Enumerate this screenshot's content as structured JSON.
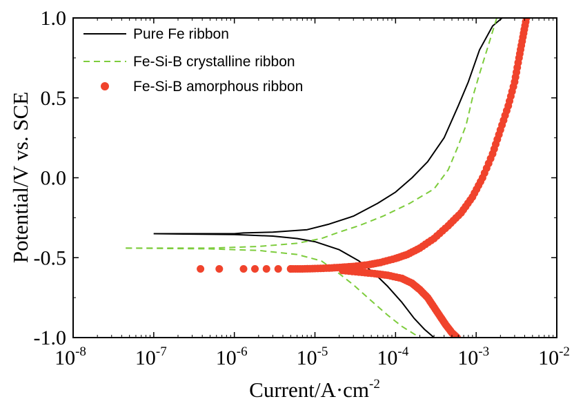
{
  "chart_data": {
    "type": "line",
    "title": "",
    "xlabel": "Current/A·cm",
    "xlabel_exp": "-2",
    "ylabel": "Potential/V vs. SCE",
    "xscale": "log",
    "xlim": [
      1e-08,
      0.01
    ],
    "ylim": [
      -1.0,
      1.0
    ],
    "x_ticks": [
      {
        "value": 1e-08,
        "base": "10",
        "exp": "-8"
      },
      {
        "value": 1e-07,
        "base": "10",
        "exp": "-7"
      },
      {
        "value": 1e-06,
        "base": "10",
        "exp": "-6"
      },
      {
        "value": 1e-05,
        "base": "10",
        "exp": "-5"
      },
      {
        "value": 0.0001,
        "base": "10",
        "exp": "-4"
      },
      {
        "value": 0.001,
        "base": "10",
        "exp": "-3"
      },
      {
        "value": 0.01,
        "base": "10",
        "exp": "-2"
      }
    ],
    "y_ticks": [
      {
        "value": -1.0,
        "label": "-1.0"
      },
      {
        "value": -0.5,
        "label": "-0.5"
      },
      {
        "value": 0.0,
        "label": "0.0"
      },
      {
        "value": 0.5,
        "label": "0.5"
      },
      {
        "value": 1.0,
        "label": "1.0"
      }
    ],
    "grid": false,
    "legend_position": "top-left",
    "series": [
      {
        "name": "Pure Fe ribbon",
        "style": "solid",
        "color": "#000000",
        "points": [
          [
            1e-07,
            -0.35
          ],
          [
            1e-06,
            -0.35
          ],
          [
            1.3e-06,
            -0.345
          ],
          [
            3e-06,
            -0.34
          ],
          [
            8e-06,
            -0.325
          ],
          [
            1.5e-05,
            -0.29
          ],
          [
            3e-05,
            -0.24
          ],
          [
            6e-05,
            -0.16
          ],
          [
            0.0001,
            -0.09
          ],
          [
            0.00016,
            0.0
          ],
          [
            0.00025,
            0.1
          ],
          [
            0.0004,
            0.25
          ],
          [
            0.0006,
            0.45
          ],
          [
            0.0008,
            0.6
          ],
          [
            0.0011,
            0.8
          ],
          [
            0.0016,
            0.95
          ],
          [
            0.0021,
            1.0
          ]
        ],
        "points_cathodic": [
          [
            1e-07,
            -0.35
          ],
          [
            1e-06,
            -0.355
          ],
          [
            3e-06,
            -0.365
          ],
          [
            6e-06,
            -0.38
          ],
          [
            1e-05,
            -0.4
          ],
          [
            2e-05,
            -0.45
          ],
          [
            3.5e-05,
            -0.52
          ],
          [
            5.5e-05,
            -0.6
          ],
          [
            8e-05,
            -0.68
          ],
          [
            0.00012,
            -0.78
          ],
          [
            0.00017,
            -0.88
          ],
          [
            0.00023,
            -0.95
          ],
          [
            0.0003,
            -1.0
          ]
        ]
      },
      {
        "name": "Fe-Si-B crystalline ribbon",
        "style": "dashed",
        "color": "#7dcc3c",
        "points": [
          [
            4.5e-08,
            -0.44
          ],
          [
            5e-07,
            -0.44
          ],
          [
            2e-06,
            -0.43
          ],
          [
            6e-06,
            -0.41
          ],
          [
            1.2e-05,
            -0.38
          ],
          [
            2e-05,
            -0.34
          ],
          [
            3.5e-05,
            -0.3
          ],
          [
            7e-05,
            -0.24
          ],
          [
            0.00015,
            -0.16
          ],
          [
            0.0003,
            -0.07
          ],
          [
            0.00045,
            0.05
          ],
          [
            0.0006,
            0.2
          ],
          [
            0.00075,
            0.33
          ],
          [
            0.0009,
            0.5
          ],
          [
            0.0011,
            0.65
          ],
          [
            0.0014,
            0.82
          ],
          [
            0.0018,
            1.0
          ]
        ],
        "points_cathodic": [
          [
            4.5e-08,
            -0.44
          ],
          [
            5e-07,
            -0.445
          ],
          [
            2e-06,
            -0.455
          ],
          [
            6e-06,
            -0.48
          ],
          [
            1.2e-05,
            -0.52
          ],
          [
            2e-05,
            -0.6
          ],
          [
            3e-05,
            -0.67
          ],
          [
            5e-05,
            -0.77
          ],
          [
            8e-05,
            -0.86
          ],
          [
            0.00012,
            -0.93
          ],
          [
            0.0002,
            -1.0
          ]
        ]
      },
      {
        "name": "Fe-Si-B amorphous ribbon",
        "style": "markers",
        "color": "#f0432c",
        "points": [
          [
            3.8e-07,
            -0.57
          ],
          [
            6.5e-07,
            -0.57
          ],
          [
            1.3e-06,
            -0.57
          ],
          [
            1.8e-06,
            -0.57
          ],
          [
            2.5e-06,
            -0.57
          ],
          [
            3.5e-06,
            -0.57
          ],
          [
            5e-06,
            -0.57
          ],
          [
            7e-06,
            -0.57
          ],
          [
            1e-05,
            -0.568
          ],
          [
            1.5e-05,
            -0.565
          ],
          [
            2.2e-05,
            -0.56
          ],
          [
            3e-05,
            -0.555
          ],
          [
            4.5e-05,
            -0.545
          ],
          [
            6.5e-05,
            -0.53
          ],
          [
            0.0001,
            -0.505
          ],
          [
            0.00014,
            -0.48
          ],
          [
            0.0002,
            -0.44
          ],
          [
            0.0003,
            -0.38
          ],
          [
            0.00045,
            -0.3
          ],
          [
            0.00065,
            -0.22
          ],
          [
            0.0009,
            -0.12
          ],
          [
            0.0012,
            0.0
          ],
          [
            0.0016,
            0.15
          ],
          [
            0.002,
            0.3
          ],
          [
            0.0025,
            0.45
          ],
          [
            0.003,
            0.6
          ],
          [
            0.0034,
            0.75
          ],
          [
            0.0038,
            0.88
          ],
          [
            0.0042,
            1.0
          ]
        ],
        "points_cathodic": [
          [
            2.2e-05,
            -0.58
          ],
          [
            3.5e-05,
            -0.59
          ],
          [
            5.5e-05,
            -0.6
          ],
          [
            8e-05,
            -0.61
          ],
          [
            0.00012,
            -0.63
          ],
          [
            0.00016,
            -0.66
          ],
          [
            0.0002,
            -0.7
          ],
          [
            0.00025,
            -0.75
          ],
          [
            0.0003,
            -0.81
          ],
          [
            0.00036,
            -0.87
          ],
          [
            0.00042,
            -0.92
          ],
          [
            0.0005,
            -0.97
          ],
          [
            0.00058,
            -1.0
          ]
        ]
      }
    ]
  }
}
